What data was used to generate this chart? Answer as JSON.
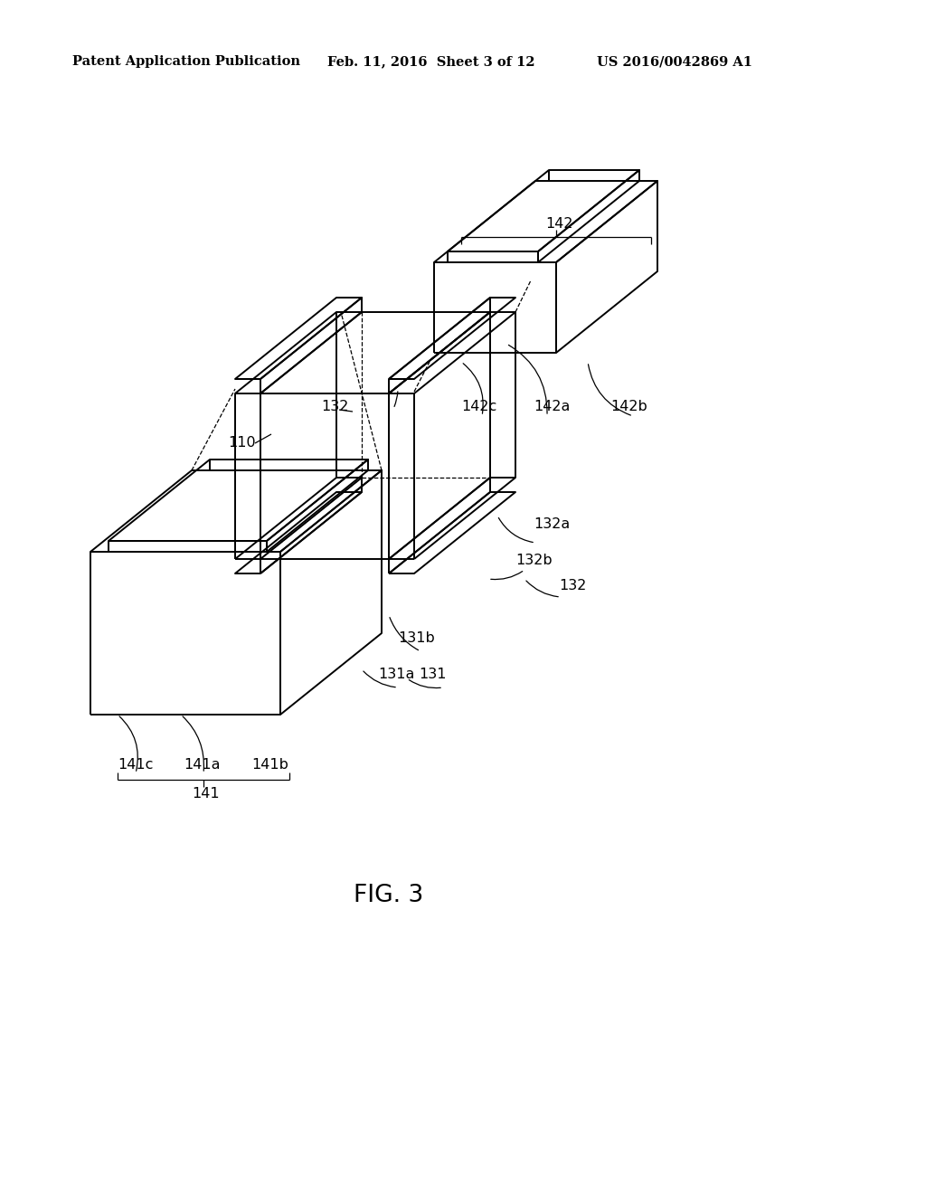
{
  "bg_color": "#ffffff",
  "line_color": "#000000",
  "header_left": "Patent Application Publication",
  "header_mid": "Feb. 11, 2016  Sheet 3 of 12",
  "header_right": "US 2016/0042869 A1",
  "fig_label": "FIG. 3",
  "lw": 1.4,
  "lw_thin": 0.9,
  "lw_dash": 0.9
}
